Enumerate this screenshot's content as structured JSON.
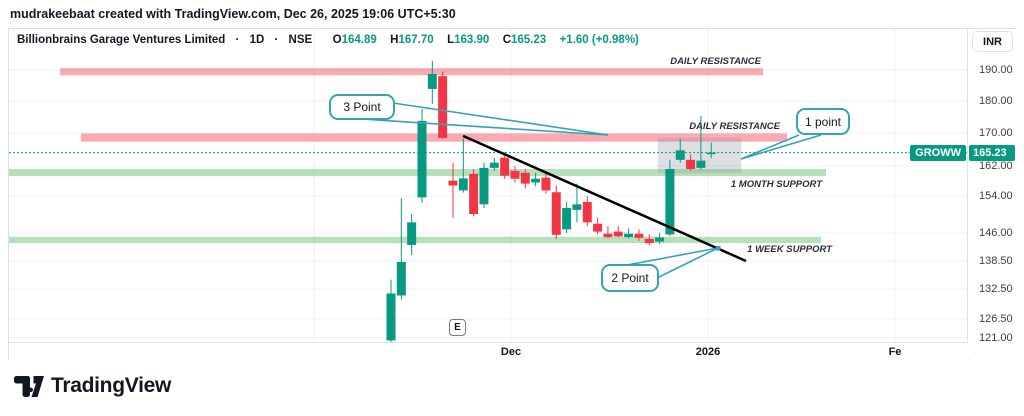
{
  "credit": "mudrakeebaat created with TradingView.com, Dec 26, 2025 19:06 UTC+5:30",
  "header": {
    "title": "Billionbrains Garage Ventures Limited",
    "dot": "·",
    "interval": "1D",
    "exchange": "NSE",
    "o_key": "O",
    "o_val": "164.89",
    "h_key": "H",
    "h_val": "167.70",
    "l_key": "L",
    "l_val": "163.90",
    "c_key": "C",
    "c_val": "165.23",
    "change": "+1.60 (+0.98%)"
  },
  "price_axis": {
    "currency_button": "INR",
    "ticks": [
      "190.00",
      "180.00",
      "170.00",
      "162.00",
      "154.00",
      "146.00",
      "138.50",
      "132.50",
      "126.50",
      "121.00"
    ],
    "last_price_label": "165.23",
    "symbol_label": "GROWW"
  },
  "time_axis": {
    "labels": [
      "Dec",
      "2026",
      "Fe"
    ]
  },
  "annotations": {
    "callouts": [
      "3 Point",
      "1 point",
      "2 Point"
    ],
    "zone_labels": [
      "DAILY RESISTANCE",
      "DAILY RESISTANCE",
      "1 MONTH SUPPORT",
      "1 WEEK SUPPORT"
    ],
    "earnings_marker": "E"
  },
  "footer": {
    "logo_text": "TradingView"
  },
  "colors": {
    "up": "#089981",
    "down": "#f23645",
    "resistance_band": "#f23645",
    "support_band": "#4caf50",
    "callout_border": "#35a3b5",
    "trendline": "#000000",
    "last_price_line": "#089981",
    "grid": "#eef0f6",
    "box": "#9598a1"
  },
  "chart_data": {
    "type": "candlestick",
    "title": "Billionbrains Garage Ventures Limited",
    "interval": "1D",
    "exchange": "NSE",
    "currency": "INR",
    "symbol_label": "GROWW",
    "last_price": 165.23,
    "last_ohlc": {
      "open": 164.89,
      "high": 167.7,
      "low": 163.9,
      "close": 165.23,
      "change": "+1.60 (+0.98%)"
    },
    "y_ticks": [
      190,
      180,
      170,
      162,
      154,
      146,
      138.5,
      132.5,
      126.5,
      121
    ],
    "x_tick_labels": [
      "Dec",
      "2026",
      "Fe"
    ],
    "grid": true,
    "candles_ohlc": [
      [
        120.3,
        134.5,
        119.8,
        131.6
      ],
      [
        131.2,
        153.5,
        130.4,
        138.3
      ],
      [
        142.8,
        150.1,
        140.1,
        148.3
      ],
      [
        153.7,
        177.5,
        152.5,
        173.8
      ],
      [
        183.9,
        192.9,
        179.1,
        188.7
      ],
      [
        188.0,
        189.5,
        168.5,
        168.8
      ],
      [
        158.1,
        162.7,
        149.3,
        156.8
      ],
      [
        155.5,
        168.7,
        154.9,
        158.7
      ],
      [
        159.9,
        161.2,
        149.6,
        150.1
      ],
      [
        152.2,
        162.8,
        151.4,
        161.5
      ],
      [
        161.5,
        164.0,
        160.7,
        162.8
      ],
      [
        164.0,
        165.3,
        158.6,
        159.4
      ],
      [
        160.7,
        162.0,
        157.6,
        158.6
      ],
      [
        160.2,
        161.2,
        156.0,
        157.3
      ],
      [
        157.6,
        160.2,
        156.6,
        158.6
      ],
      [
        158.9,
        160.2,
        154.6,
        155.5
      ],
      [
        155.0,
        156.8,
        144.4,
        145.5
      ],
      [
        146.8,
        152.7,
        146.0,
        151.4
      ],
      [
        151.0,
        157.3,
        148.3,
        152.2
      ],
      [
        152.7,
        154.0,
        147.5,
        148.3
      ],
      [
        148.0,
        149.3,
        145.7,
        146.3
      ],
      [
        145.8,
        147.5,
        144.6,
        144.9
      ],
      [
        146.3,
        147.5,
        144.8,
        145.1
      ],
      [
        144.9,
        147.0,
        144.6,
        145.8
      ],
      [
        145.8,
        146.8,
        143.9,
        144.7
      ],
      [
        144.4,
        145.6,
        142.6,
        143.3
      ],
      [
        143.7,
        146.0,
        143.1,
        144.8
      ],
      [
        145.6,
        163.5,
        145.2,
        161.2
      ],
      [
        163.5,
        168.5,
        162.8,
        165.8
      ],
      [
        163.5,
        164.8,
        160.7,
        161.2
      ],
      [
        161.5,
        175.3,
        161.0,
        163.3
      ],
      [
        164.89,
        167.7,
        163.9,
        165.23
      ]
    ],
    "zones": [
      {
        "label": "DAILY RESISTANCE",
        "kind": "resistance",
        "price_from": 188.3,
        "price_to": 190.6
      },
      {
        "label": "DAILY RESISTANCE",
        "kind": "resistance",
        "price_from": 167.9,
        "price_to": 169.9
      },
      {
        "label": "1 MONTH SUPPORT",
        "kind": "support",
        "price_from": 159.3,
        "price_to": 161.2
      },
      {
        "label": "1 WEEK SUPPORT",
        "kind": "support",
        "price_from": 143.3,
        "price_to": 145.0
      }
    ],
    "trendline": {
      "from_price": 169.3,
      "to_price": 138.5
    },
    "consolidation_box": {
      "price_from": 160.1,
      "price_to": 168.8
    }
  }
}
